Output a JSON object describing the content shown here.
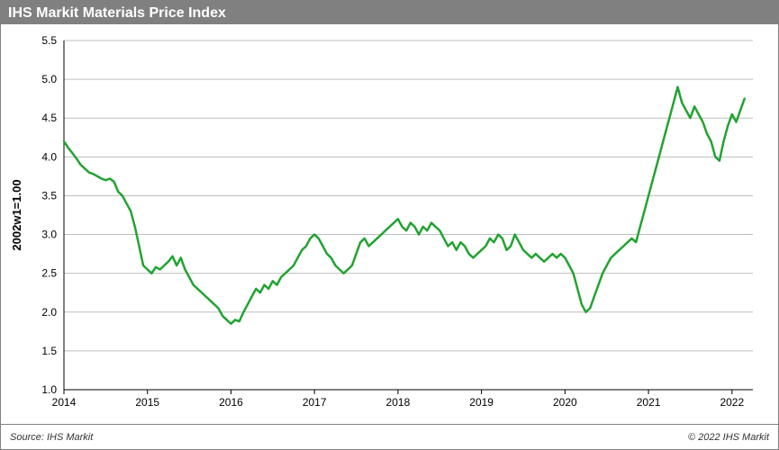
{
  "title": "IHS Markit Materials Price Index",
  "footer": {
    "source_prefix": "Source: ",
    "source": "IHS Markit",
    "copyright": "© 2022 IHS Markit"
  },
  "chart": {
    "type": "line",
    "ylabel": "2002w1=1.00",
    "xlim": [
      2014,
      2022.25
    ],
    "ylim": [
      1.0,
      5.5
    ],
    "ytick_step": 0.5,
    "xticks": [
      2014,
      2015,
      2016,
      2017,
      2018,
      2019,
      2020,
      2021,
      2022
    ],
    "background_color": "#ffffff",
    "grid_color": "#bfbfbf",
    "axis_color": "#000000",
    "title_bar_color": "#808080",
    "title_text_color": "#ffffff",
    "tick_fontsize": 12,
    "ylabel_fontsize": 13,
    "title_fontsize": 16,
    "footer_fontsize": 11,
    "line_color": "#22a332",
    "line_width": 2.5,
    "series": [
      {
        "x": 2014.0,
        "y": 4.2
      },
      {
        "x": 2014.05,
        "y": 4.12
      },
      {
        "x": 2014.1,
        "y": 4.05
      },
      {
        "x": 2014.15,
        "y": 3.98
      },
      {
        "x": 2014.2,
        "y": 3.9
      },
      {
        "x": 2014.25,
        "y": 3.85
      },
      {
        "x": 2014.3,
        "y": 3.8
      },
      {
        "x": 2014.35,
        "y": 3.78
      },
      {
        "x": 2014.4,
        "y": 3.75
      },
      {
        "x": 2014.45,
        "y": 3.72
      },
      {
        "x": 2014.5,
        "y": 3.7
      },
      {
        "x": 2014.55,
        "y": 3.72
      },
      {
        "x": 2014.6,
        "y": 3.68
      },
      {
        "x": 2014.65,
        "y": 3.55
      },
      {
        "x": 2014.7,
        "y": 3.5
      },
      {
        "x": 2014.75,
        "y": 3.4
      },
      {
        "x": 2014.8,
        "y": 3.3
      },
      {
        "x": 2014.85,
        "y": 3.1
      },
      {
        "x": 2014.9,
        "y": 2.85
      },
      {
        "x": 2014.95,
        "y": 2.6
      },
      {
        "x": 2015.0,
        "y": 2.55
      },
      {
        "x": 2015.05,
        "y": 2.5
      },
      {
        "x": 2015.1,
        "y": 2.58
      },
      {
        "x": 2015.15,
        "y": 2.55
      },
      {
        "x": 2015.2,
        "y": 2.6
      },
      {
        "x": 2015.25,
        "y": 2.65
      },
      {
        "x": 2015.3,
        "y": 2.72
      },
      {
        "x": 2015.35,
        "y": 2.6
      },
      {
        "x": 2015.4,
        "y": 2.7
      },
      {
        "x": 2015.45,
        "y": 2.55
      },
      {
        "x": 2015.5,
        "y": 2.45
      },
      {
        "x": 2015.55,
        "y": 2.35
      },
      {
        "x": 2015.6,
        "y": 2.3
      },
      {
        "x": 2015.65,
        "y": 2.25
      },
      {
        "x": 2015.7,
        "y": 2.2
      },
      {
        "x": 2015.75,
        "y": 2.15
      },
      {
        "x": 2015.8,
        "y": 2.1
      },
      {
        "x": 2015.85,
        "y": 2.05
      },
      {
        "x": 2015.9,
        "y": 1.95
      },
      {
        "x": 2015.95,
        "y": 1.9
      },
      {
        "x": 2016.0,
        "y": 1.85
      },
      {
        "x": 2016.05,
        "y": 1.9
      },
      {
        "x": 2016.1,
        "y": 1.88
      },
      {
        "x": 2016.15,
        "y": 2.0
      },
      {
        "x": 2016.2,
        "y": 2.1
      },
      {
        "x": 2016.25,
        "y": 2.2
      },
      {
        "x": 2016.3,
        "y": 2.3
      },
      {
        "x": 2016.35,
        "y": 2.25
      },
      {
        "x": 2016.4,
        "y": 2.35
      },
      {
        "x": 2016.45,
        "y": 2.3
      },
      {
        "x": 2016.5,
        "y": 2.4
      },
      {
        "x": 2016.55,
        "y": 2.35
      },
      {
        "x": 2016.6,
        "y": 2.45
      },
      {
        "x": 2016.65,
        "y": 2.5
      },
      {
        "x": 2016.7,
        "y": 2.55
      },
      {
        "x": 2016.75,
        "y": 2.6
      },
      {
        "x": 2016.8,
        "y": 2.7
      },
      {
        "x": 2016.85,
        "y": 2.8
      },
      {
        "x": 2016.9,
        "y": 2.85
      },
      {
        "x": 2016.95,
        "y": 2.95
      },
      {
        "x": 2017.0,
        "y": 3.0
      },
      {
        "x": 2017.05,
        "y": 2.95
      },
      {
        "x": 2017.1,
        "y": 2.85
      },
      {
        "x": 2017.15,
        "y": 2.75
      },
      {
        "x": 2017.2,
        "y": 2.7
      },
      {
        "x": 2017.25,
        "y": 2.6
      },
      {
        "x": 2017.3,
        "y": 2.55
      },
      {
        "x": 2017.35,
        "y": 2.5
      },
      {
        "x": 2017.4,
        "y": 2.55
      },
      {
        "x": 2017.45,
        "y": 2.6
      },
      {
        "x": 2017.5,
        "y": 2.75
      },
      {
        "x": 2017.55,
        "y": 2.9
      },
      {
        "x": 2017.6,
        "y": 2.95
      },
      {
        "x": 2017.65,
        "y": 2.85
      },
      {
        "x": 2017.7,
        "y": 2.9
      },
      {
        "x": 2017.75,
        "y": 2.95
      },
      {
        "x": 2017.8,
        "y": 3.0
      },
      {
        "x": 2017.85,
        "y": 3.05
      },
      {
        "x": 2017.9,
        "y": 3.1
      },
      {
        "x": 2017.95,
        "y": 3.15
      },
      {
        "x": 2018.0,
        "y": 3.2
      },
      {
        "x": 2018.05,
        "y": 3.1
      },
      {
        "x": 2018.1,
        "y": 3.05
      },
      {
        "x": 2018.15,
        "y": 3.15
      },
      {
        "x": 2018.2,
        "y": 3.1
      },
      {
        "x": 2018.25,
        "y": 3.0
      },
      {
        "x": 2018.3,
        "y": 3.1
      },
      {
        "x": 2018.35,
        "y": 3.05
      },
      {
        "x": 2018.4,
        "y": 3.15
      },
      {
        "x": 2018.45,
        "y": 3.1
      },
      {
        "x": 2018.5,
        "y": 3.05
      },
      {
        "x": 2018.55,
        "y": 2.95
      },
      {
        "x": 2018.6,
        "y": 2.85
      },
      {
        "x": 2018.65,
        "y": 2.9
      },
      {
        "x": 2018.7,
        "y": 2.8
      },
      {
        "x": 2018.75,
        "y": 2.9
      },
      {
        "x": 2018.8,
        "y": 2.85
      },
      {
        "x": 2018.85,
        "y": 2.75
      },
      {
        "x": 2018.9,
        "y": 2.7
      },
      {
        "x": 2018.95,
        "y": 2.75
      },
      {
        "x": 2019.0,
        "y": 2.8
      },
      {
        "x": 2019.05,
        "y": 2.85
      },
      {
        "x": 2019.1,
        "y": 2.95
      },
      {
        "x": 2019.15,
        "y": 2.9
      },
      {
        "x": 2019.2,
        "y": 3.0
      },
      {
        "x": 2019.25,
        "y": 2.95
      },
      {
        "x": 2019.3,
        "y": 2.8
      },
      {
        "x": 2019.35,
        "y": 2.85
      },
      {
        "x": 2019.4,
        "y": 3.0
      },
      {
        "x": 2019.45,
        "y": 2.9
      },
      {
        "x": 2019.5,
        "y": 2.8
      },
      {
        "x": 2019.55,
        "y": 2.75
      },
      {
        "x": 2019.6,
        "y": 2.7
      },
      {
        "x": 2019.65,
        "y": 2.75
      },
      {
        "x": 2019.7,
        "y": 2.7
      },
      {
        "x": 2019.75,
        "y": 2.65
      },
      {
        "x": 2019.8,
        "y": 2.7
      },
      {
        "x": 2019.85,
        "y": 2.75
      },
      {
        "x": 2019.9,
        "y": 2.7
      },
      {
        "x": 2019.95,
        "y": 2.75
      },
      {
        "x": 2020.0,
        "y": 2.7
      },
      {
        "x": 2020.05,
        "y": 2.6
      },
      {
        "x": 2020.1,
        "y": 2.5
      },
      {
        "x": 2020.15,
        "y": 2.3
      },
      {
        "x": 2020.2,
        "y": 2.1
      },
      {
        "x": 2020.25,
        "y": 2.0
      },
      {
        "x": 2020.3,
        "y": 2.05
      },
      {
        "x": 2020.35,
        "y": 2.2
      },
      {
        "x": 2020.4,
        "y": 2.35
      },
      {
        "x": 2020.45,
        "y": 2.5
      },
      {
        "x": 2020.5,
        "y": 2.6
      },
      {
        "x": 2020.55,
        "y": 2.7
      },
      {
        "x": 2020.6,
        "y": 2.75
      },
      {
        "x": 2020.65,
        "y": 2.8
      },
      {
        "x": 2020.7,
        "y": 2.85
      },
      {
        "x": 2020.75,
        "y": 2.9
      },
      {
        "x": 2020.8,
        "y": 2.95
      },
      {
        "x": 2020.85,
        "y": 2.9
      },
      {
        "x": 2020.9,
        "y": 3.1
      },
      {
        "x": 2020.95,
        "y": 3.3
      },
      {
        "x": 2021.0,
        "y": 3.5
      },
      {
        "x": 2021.05,
        "y": 3.7
      },
      {
        "x": 2021.1,
        "y": 3.9
      },
      {
        "x": 2021.15,
        "y": 4.1
      },
      {
        "x": 2021.2,
        "y": 4.3
      },
      {
        "x": 2021.25,
        "y": 4.5
      },
      {
        "x": 2021.3,
        "y": 4.7
      },
      {
        "x": 2021.35,
        "y": 4.9
      },
      {
        "x": 2021.4,
        "y": 4.7
      },
      {
        "x": 2021.45,
        "y": 4.6
      },
      {
        "x": 2021.5,
        "y": 4.5
      },
      {
        "x": 2021.55,
        "y": 4.65
      },
      {
        "x": 2021.6,
        "y": 4.55
      },
      {
        "x": 2021.65,
        "y": 4.45
      },
      {
        "x": 2021.7,
        "y": 4.3
      },
      {
        "x": 2021.75,
        "y": 4.2
      },
      {
        "x": 2021.8,
        "y": 4.0
      },
      {
        "x": 2021.85,
        "y": 3.95
      },
      {
        "x": 2021.9,
        "y": 4.2
      },
      {
        "x": 2021.95,
        "y": 4.4
      },
      {
        "x": 2022.0,
        "y": 4.55
      },
      {
        "x": 2022.05,
        "y": 4.45
      },
      {
        "x": 2022.1,
        "y": 4.6
      },
      {
        "x": 2022.15,
        "y": 4.75
      }
    ]
  }
}
